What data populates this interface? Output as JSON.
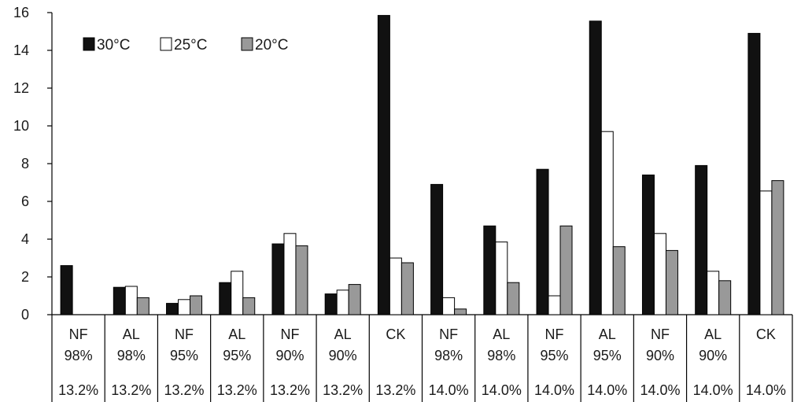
{
  "chart_data": {
    "type": "bar",
    "title": "",
    "xlabel": "",
    "ylabel": "",
    "ylim": [
      0,
      16
    ],
    "yticks": [
      "0",
      "2",
      "4",
      "6",
      "8",
      "10",
      "12",
      "14",
      "16"
    ],
    "grid": false,
    "legend_position": "top-left",
    "categories": [
      {
        "treatment": "NF",
        "rh": "98%",
        "moisture": "13.2%"
      },
      {
        "treatment": "AL",
        "rh": "98%",
        "moisture": "13.2%"
      },
      {
        "treatment": "NF",
        "rh": "95%",
        "moisture": "13.2%"
      },
      {
        "treatment": "AL",
        "rh": "95%",
        "moisture": "13.2%"
      },
      {
        "treatment": "NF",
        "rh": "90%",
        "moisture": "13.2%"
      },
      {
        "treatment": "AL",
        "rh": "90%",
        "moisture": "13.2%"
      },
      {
        "treatment": "CK",
        "rh": "",
        "moisture": "13.2%"
      },
      {
        "treatment": "NF",
        "rh": "98%",
        "moisture": "14.0%"
      },
      {
        "treatment": "AL",
        "rh": "98%",
        "moisture": "14.0%"
      },
      {
        "treatment": "NF",
        "rh": "95%",
        "moisture": "14.0%"
      },
      {
        "treatment": "AL",
        "rh": "95%",
        "moisture": "14.0%"
      },
      {
        "treatment": "NF",
        "rh": "90%",
        "moisture": "14.0%"
      },
      {
        "treatment": "AL",
        "rh": "90%",
        "moisture": "14.0%"
      },
      {
        "treatment": "CK",
        "rh": "",
        "moisture": "14.0%"
      }
    ],
    "series": [
      {
        "name": "30°C",
        "color": "#111111",
        "values": [
          2.6,
          1.45,
          0.6,
          1.7,
          3.75,
          1.1,
          15.85,
          6.9,
          4.7,
          7.7,
          15.55,
          7.4,
          7.9,
          14.9
        ]
      },
      {
        "name": "25°C",
        "color": "#ffffff",
        "values": [
          0,
          1.5,
          0.8,
          2.3,
          4.3,
          1.3,
          3.0,
          0.9,
          3.85,
          1.0,
          9.7,
          4.3,
          2.3,
          6.55
        ]
      },
      {
        "name": "20°C",
        "color": "#999999",
        "values": [
          0,
          0.9,
          1.0,
          0.9,
          3.65,
          1.6,
          2.75,
          0.3,
          1.7,
          4.7,
          3.6,
          3.4,
          1.8,
          7.1
        ]
      }
    ]
  }
}
